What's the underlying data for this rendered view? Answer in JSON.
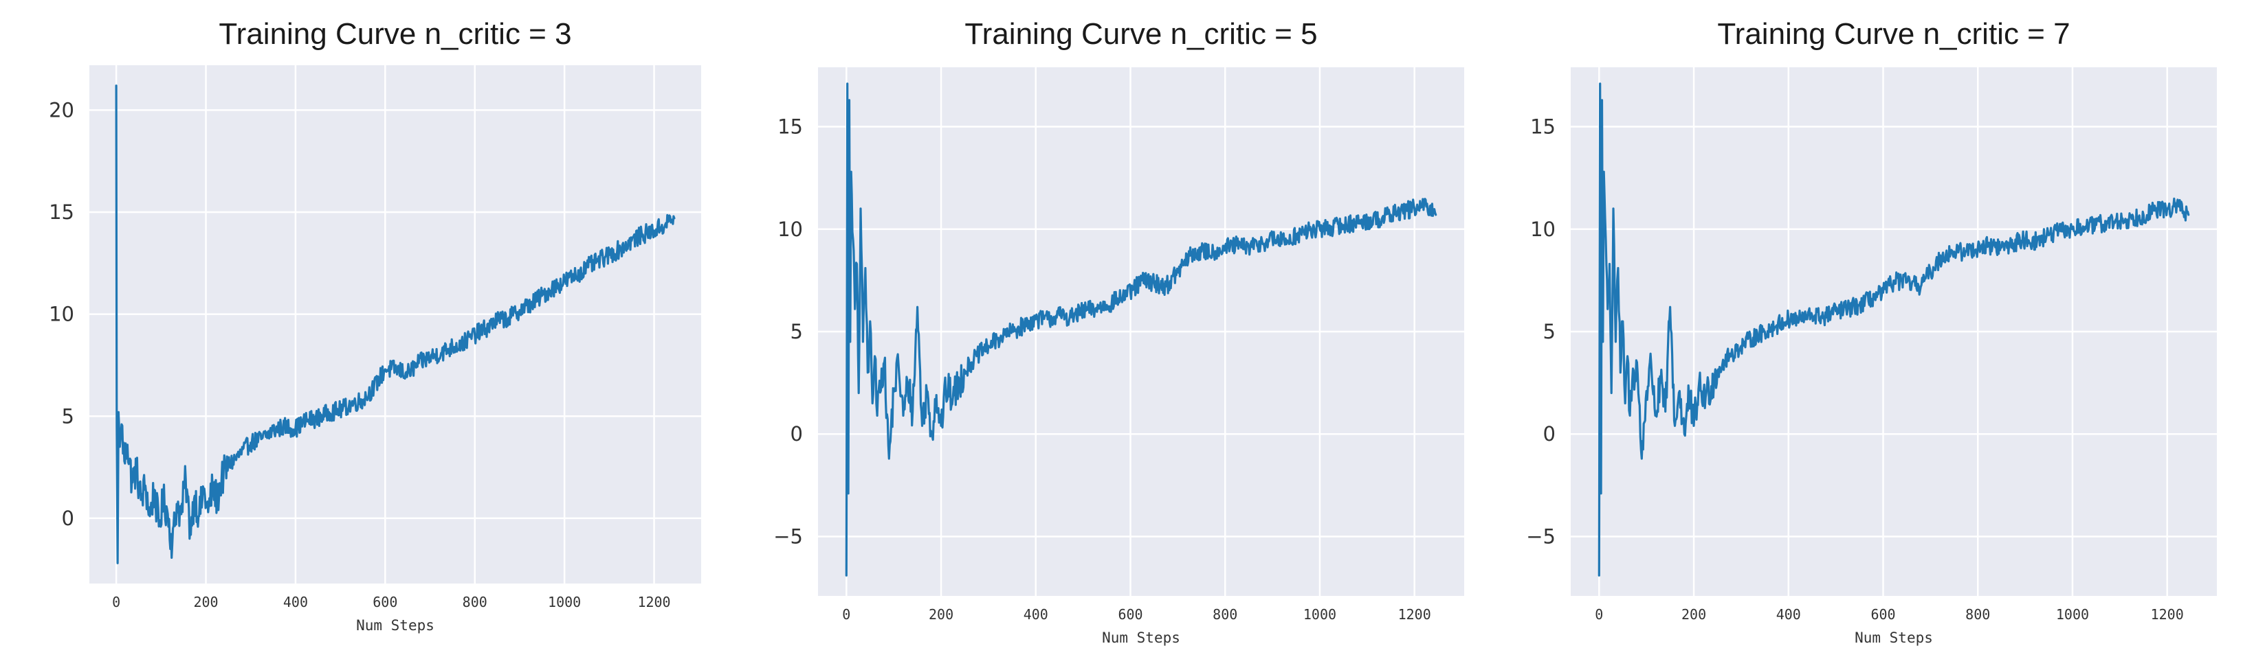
{
  "chart_data": [
    {
      "type": "line",
      "title": "Training Curve n_critic = 3",
      "xlabel": "Num Steps",
      "ylabel": "",
      "xlim": [
        -60,
        1305
      ],
      "ylim": [
        -3.2,
        22.2
      ],
      "xticks": [
        0,
        200,
        400,
        600,
        800,
        1000,
        1200
      ],
      "xtick_labels": [
        "0",
        "200",
        "400",
        "600",
        "800",
        "1000",
        "1200"
      ],
      "yticks": [
        0,
        5,
        10,
        15,
        20
      ],
      "ytick_labels": [
        "0",
        "5",
        "10",
        "15",
        "20"
      ],
      "grid": true,
      "color": "#1f77b4",
      "series": [
        {
          "x": [
            0,
            1,
            3,
            5,
            8,
            12,
            18,
            25,
            35,
            45,
            55,
            65,
            75,
            85,
            95,
            105,
            115,
            125,
            135,
            145,
            155,
            165,
            175,
            185,
            195,
            205,
            215,
            225,
            235,
            250,
            275,
            300,
            325,
            350,
            375,
            400,
            425,
            450,
            475,
            500,
            525,
            550,
            575,
            600,
            625,
            650,
            675,
            700,
            725,
            750,
            775,
            800,
            825,
            850,
            875,
            900,
            925,
            950,
            975,
            1000,
            1025,
            1050,
            1075,
            1100,
            1125,
            1150,
            1175,
            1200,
            1225,
            1245
          ],
          "y": [
            21.2,
            4.5,
            -2.2,
            5.2,
            3.5,
            4.6,
            2.8,
            3.6,
            1.8,
            2.4,
            0.9,
            1.6,
            0.1,
            1.4,
            -0.4,
            0.9,
            0.2,
            -1.3,
            0.7,
            0.2,
            1.9,
            -0.6,
            1.1,
            0.1,
            1.4,
            0.3,
            1.5,
            0.9,
            1.9,
            2.6,
            3.1,
            3.7,
            3.9,
            4.3,
            4.5,
            4.4,
            4.8,
            4.9,
            5.2,
            5.3,
            5.6,
            5.8,
            6.4,
            7.3,
            7.3,
            7.1,
            7.6,
            7.9,
            8.1,
            8.4,
            8.6,
            9.0,
            9.3,
            9.7,
            9.8,
            10.2,
            10.5,
            10.9,
            11.3,
            11.6,
            11.9,
            12.3,
            12.6,
            12.9,
            13.2,
            13.6,
            13.9,
            14.1,
            14.4,
            14.7
          ]
        }
      ]
    },
    {
      "type": "line",
      "title": "Training Curve n_critic = 5",
      "xlabel": "Num Steps",
      "ylabel": "",
      "xlim": [
        -60,
        1305
      ],
      "ylim": [
        -7.9,
        17.9
      ],
      "xticks": [
        0,
        200,
        400,
        600,
        800,
        1000,
        1200
      ],
      "xtick_labels": [
        "0",
        "200",
        "400",
        "600",
        "800",
        "1000",
        "1200"
      ],
      "yticks": [
        -5,
        0,
        5,
        10,
        15
      ],
      "ytick_labels": [
        "−5",
        "0",
        "5",
        "10",
        "15"
      ],
      "grid": true,
      "color": "#1f77b4",
      "series": [
        {
          "x": [
            0,
            2,
            4,
            6,
            8,
            10,
            14,
            18,
            22,
            26,
            30,
            35,
            40,
            45,
            50,
            55,
            60,
            65,
            70,
            80,
            90,
            100,
            110,
            120,
            130,
            140,
            150,
            160,
            170,
            180,
            190,
            200,
            210,
            225,
            250,
            275,
            300,
            325,
            350,
            375,
            400,
            425,
            450,
            475,
            500,
            525,
            550,
            575,
            600,
            625,
            650,
            675,
            700,
            725,
            750,
            775,
            800,
            825,
            850,
            875,
            900,
            925,
            950,
            975,
            1000,
            1025,
            1050,
            1075,
            1100,
            1125,
            1150,
            1175,
            1200,
            1225,
            1245
          ],
          "y": [
            -6.9,
            17.1,
            -2.9,
            16.3,
            4.5,
            12.8,
            9.5,
            6.1,
            8.3,
            2.0,
            11.0,
            4.5,
            8.1,
            3.0,
            5.5,
            1.5,
            3.8,
            0.9,
            2.6,
            3.5,
            -1.2,
            2.1,
            3.4,
            0.9,
            2.5,
            1.1,
            6.2,
            0.4,
            2.1,
            0.0,
            1.9,
            0.4,
            2.2,
            1.8,
            3.1,
            3.8,
            4.3,
            4.7,
            5.0,
            5.3,
            5.6,
            5.6,
            5.8,
            5.7,
            6.0,
            6.1,
            6.3,
            6.6,
            6.9,
            7.5,
            7.4,
            7.2,
            7.9,
            8.7,
            8.9,
            8.9,
            9.1,
            9.2,
            9.1,
            9.3,
            9.5,
            9.4,
            9.7,
            9.9,
            10.0,
            10.1,
            10.2,
            10.3,
            10.4,
            10.5,
            10.7,
            10.9,
            11.0,
            11.1,
            10.7
          ]
        }
      ]
    },
    {
      "type": "line",
      "title": "Training Curve n_critic = 7",
      "xlabel": "Num Steps",
      "ylabel": "",
      "xlim": [
        -60,
        1305
      ],
      "ylim": [
        -7.9,
        17.9
      ],
      "xticks": [
        0,
        200,
        400,
        600,
        800,
        1000,
        1200
      ],
      "xtick_labels": [
        "0",
        "200",
        "400",
        "600",
        "800",
        "1000",
        "1200"
      ],
      "yticks": [
        -5,
        0,
        5,
        10,
        15
      ],
      "ytick_labels": [
        "−5",
        "0",
        "5",
        "10",
        "15"
      ],
      "grid": true,
      "color": "#1f77b4",
      "series": [
        {
          "x": [
            0,
            2,
            4,
            6,
            8,
            10,
            14,
            18,
            22,
            26,
            30,
            35,
            40,
            45,
            50,
            55,
            60,
            65,
            70,
            80,
            90,
            100,
            110,
            120,
            130,
            140,
            150,
            160,
            170,
            180,
            190,
            200,
            210,
            225,
            250,
            275,
            300,
            325,
            350,
            375,
            400,
            425,
            450,
            475,
            500,
            525,
            550,
            575,
            600,
            625,
            650,
            675,
            700,
            725,
            750,
            775,
            800,
            825,
            850,
            875,
            900,
            925,
            950,
            975,
            1000,
            1025,
            1050,
            1075,
            1100,
            1125,
            1150,
            1175,
            1200,
            1225,
            1245
          ],
          "y": [
            -6.9,
            17.1,
            -2.9,
            16.3,
            4.5,
            12.8,
            9.5,
            6.1,
            8.3,
            2.0,
            11.0,
            4.5,
            8.1,
            3.0,
            5.5,
            1.5,
            3.8,
            0.9,
            2.6,
            3.5,
            -1.2,
            2.1,
            3.4,
            0.9,
            2.5,
            1.1,
            6.2,
            0.4,
            2.1,
            0.0,
            1.9,
            0.4,
            2.2,
            1.8,
            3.1,
            3.8,
            4.3,
            4.7,
            5.0,
            5.3,
            5.6,
            5.6,
            5.8,
            5.7,
            6.0,
            6.1,
            6.3,
            6.6,
            6.9,
            7.5,
            7.4,
            7.2,
            7.9,
            8.7,
            8.9,
            8.9,
            9.1,
            9.2,
            9.1,
            9.3,
            9.5,
            9.4,
            9.7,
            9.9,
            10.0,
            10.1,
            10.2,
            10.3,
            10.4,
            10.5,
            10.7,
            10.9,
            11.0,
            11.1,
            10.7
          ]
        }
      ]
    }
  ]
}
